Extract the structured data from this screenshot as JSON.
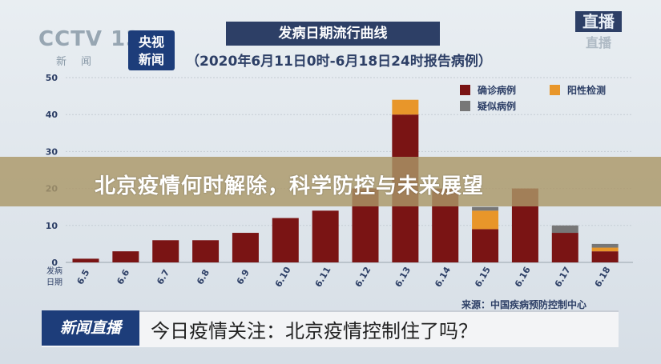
{
  "header": {
    "cctv_logo": "CCTV 13",
    "cctv_sub": "新闻",
    "news_badge": [
      "央视",
      "新闻"
    ],
    "live_top": "直播",
    "live_bottom": "直播"
  },
  "banner": {
    "text": "北京疫情何时解除，科学防控与未来展望"
  },
  "ticker": {
    "tag": "新闻直播",
    "text": "今日疫情关注：北京疫情控制住了吗？"
  },
  "colors": {
    "confirmed": "#7a1414",
    "positive": "#e8962a",
    "suspected": "#777777",
    "bar_shadow": "#5a0e0e"
  },
  "chart_data": {
    "type": "bar",
    "title": "发病日期流行曲线",
    "subtitle": "（2020年6月11日0时-6月18日24时报告病例）",
    "xlabel": "发病日期",
    "ylim": [
      0,
      50
    ],
    "yticks": [
      0,
      10,
      20,
      30,
      40,
      50
    ],
    "categories": [
      "6.5",
      "6.6",
      "6.7",
      "6.8",
      "6.9",
      "6.10",
      "6.11",
      "6.12",
      "6.13",
      "6.14",
      "6.15",
      "6.16",
      "6.17",
      "6.18"
    ],
    "series": [
      {
        "name": "确诊病例",
        "values": [
          1,
          3,
          6,
          6,
          8,
          12,
          14,
          20,
          40,
          20,
          9,
          20,
          8,
          3
        ]
      },
      {
        "name": "阳性检测",
        "values": [
          0,
          0,
          0,
          0,
          0,
          0,
          0,
          0,
          4,
          0,
          5,
          0,
          0,
          1
        ]
      },
      {
        "name": "疑似病例",
        "values": [
          0,
          0,
          0,
          0,
          0,
          0,
          0,
          0,
          0,
          0,
          1,
          0,
          2,
          1
        ]
      }
    ],
    "source": "来源：中国疾病预防控制中心",
    "legend_position": "top-right"
  }
}
